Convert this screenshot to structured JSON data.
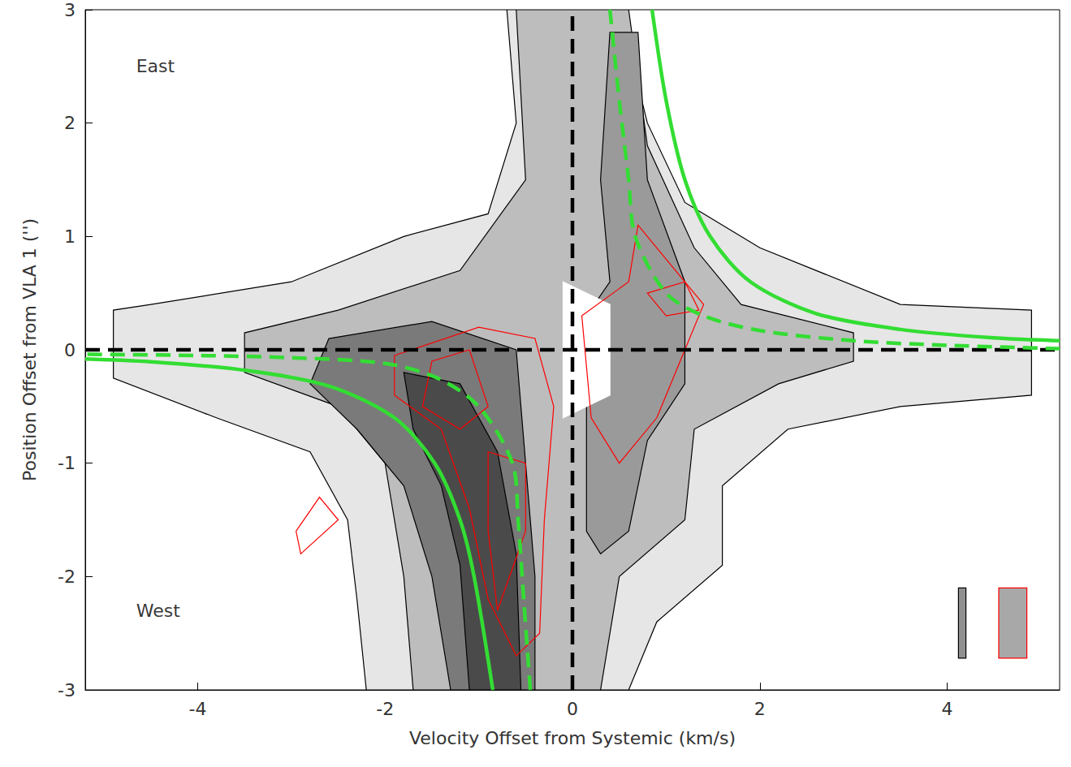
{
  "chart_data": {
    "type": "contour",
    "x_label": "Velocity Offset from Systemic (km/s)",
    "y_label": "Position Offset from VLA 1 ('')",
    "xlim": [
      -5.2,
      5.2
    ],
    "xticks": [
      -4,
      -2,
      0,
      2,
      4
    ],
    "ylim": [
      -3,
      3
    ],
    "yticks": [
      -3,
      -2,
      -1,
      0,
      1,
      2,
      3
    ],
    "grid": false,
    "annotations": [
      {
        "text": "East",
        "x": -4.7,
        "y": 2.5
      },
      {
        "text": "West",
        "x": -4.7,
        "y": -2.3
      }
    ],
    "series": [
      {
        "type": "polygon",
        "color": "#000000",
        "fill": "#e6e6e6",
        "points": [
          [
            -0.7,
            3
          ],
          [
            -0.6,
            2.0
          ],
          [
            -0.9,
            1.2
          ],
          [
            -1.8,
            1.0
          ],
          [
            -3.0,
            0.6
          ],
          [
            -4.5,
            0.4
          ],
          [
            -4.9,
            0.35
          ],
          [
            -4.9,
            -0.25
          ],
          [
            -3.8,
            -0.6
          ],
          [
            -2.8,
            -0.9
          ],
          [
            -2.4,
            -1.5
          ],
          [
            -2.3,
            -2.2
          ],
          [
            -2.2,
            -3
          ],
          [
            0.6,
            -3
          ],
          [
            0.9,
            -2.4
          ],
          [
            1.6,
            -1.9
          ],
          [
            1.6,
            -1.2
          ],
          [
            2.3,
            -0.7
          ],
          [
            3.5,
            -0.5
          ],
          [
            4.9,
            -0.4
          ],
          [
            4.9,
            0.35
          ],
          [
            3.5,
            0.4
          ],
          [
            2.0,
            0.9
          ],
          [
            1.2,
            1.3
          ],
          [
            0.8,
            2.0
          ],
          [
            0.5,
            3
          ]
        ]
      },
      {
        "type": "polygon",
        "color": "#000000",
        "fill": "#bdbdbd",
        "points": [
          [
            -0.6,
            3
          ],
          [
            -0.5,
            1.5
          ],
          [
            -1.2,
            0.7
          ],
          [
            -2.5,
            0.35
          ],
          [
            -3.5,
            0.15
          ],
          [
            -3.5,
            -0.2
          ],
          [
            -2.5,
            -0.5
          ],
          [
            -2.0,
            -1.0
          ],
          [
            -1.8,
            -2
          ],
          [
            -1.7,
            -3
          ],
          [
            0.3,
            -3
          ],
          [
            0.5,
            -2
          ],
          [
            1.2,
            -1.5
          ],
          [
            1.3,
            -0.7
          ],
          [
            2.2,
            -0.3
          ],
          [
            3,
            -0.1
          ],
          [
            3,
            0.15
          ],
          [
            1.8,
            0.4
          ],
          [
            1.3,
            0.9
          ],
          [
            0.8,
            1.8
          ],
          [
            0.6,
            3
          ]
        ]
      },
      {
        "type": "polygon",
        "color": "#000000",
        "fill": "#9a9a9a",
        "points": [
          [
            0.15,
            -1.6
          ],
          [
            0.15,
            0.3
          ],
          [
            0.4,
            0.6
          ],
          [
            0.3,
            1.5
          ],
          [
            0.4,
            2.8
          ],
          [
            0.7,
            2.8
          ],
          [
            0.8,
            1.5
          ],
          [
            1.2,
            0.6
          ],
          [
            1.2,
            -0.3
          ],
          [
            0.8,
            -0.8
          ],
          [
            0.6,
            -1.6
          ],
          [
            0.3,
            -1.8
          ]
        ]
      },
      {
        "type": "polygon",
        "color": "#000000",
        "fill": "#7a7a7a",
        "points": [
          [
            -2.6,
            0.1
          ],
          [
            -1.5,
            0.25
          ],
          [
            -0.6,
            0
          ],
          [
            -0.5,
            -1.0
          ],
          [
            -0.4,
            -2
          ],
          [
            -0.4,
            -3
          ],
          [
            -1.3,
            -3
          ],
          [
            -1.5,
            -2.0
          ],
          [
            -1.8,
            -1.2
          ],
          [
            -2.3,
            -0.7
          ],
          [
            -2.8,
            -0.3
          ]
        ]
      },
      {
        "type": "polygon",
        "color": "#000000",
        "fill": "#4a4a4a",
        "points": [
          [
            -1.8,
            -0.2
          ],
          [
            -1.2,
            -0.3
          ],
          [
            -0.8,
            -0.9
          ],
          [
            -0.6,
            -1.8
          ],
          [
            -0.55,
            -3
          ],
          [
            -1.1,
            -3
          ],
          [
            -1.2,
            -1.9
          ],
          [
            -1.4,
            -1.2
          ],
          [
            -1.7,
            -0.7
          ]
        ]
      },
      {
        "type": "polygon",
        "color": "#ffffff",
        "fill": "#ffffff",
        "points": [
          [
            -0.1,
            0.6
          ],
          [
            0.4,
            0.4
          ],
          [
            0.4,
            -0.4
          ],
          [
            -0.1,
            -0.6
          ]
        ]
      },
      {
        "type": "polygon",
        "color": "#ff0000",
        "fill": "none",
        "points": [
          [
            -1.9,
            -0.05
          ],
          [
            -1.0,
            0.2
          ],
          [
            -0.4,
            0.1
          ],
          [
            -0.2,
            -0.5
          ],
          [
            -0.3,
            -1.5
          ],
          [
            -0.35,
            -2.5
          ],
          [
            -0.6,
            -2.7
          ],
          [
            -0.9,
            -2.2
          ],
          [
            -1.1,
            -1.4
          ],
          [
            -1.4,
            -0.7
          ],
          [
            -1.9,
            -0.4
          ]
        ]
      },
      {
        "type": "polygon",
        "color": "#ff0000",
        "fill": "none",
        "points": [
          [
            -1.5,
            -0.1
          ],
          [
            -1.1,
            0.0
          ],
          [
            -0.9,
            -0.5
          ],
          [
            -1.2,
            -0.7
          ],
          [
            -1.6,
            -0.5
          ]
        ]
      },
      {
        "type": "polygon",
        "color": "#ff0000",
        "fill": "none",
        "points": [
          [
            -0.9,
            -0.9
          ],
          [
            -0.5,
            -1.0
          ],
          [
            -0.5,
            -1.6
          ],
          [
            -0.8,
            -2.3
          ],
          [
            -0.9,
            -1.6
          ]
        ]
      },
      {
        "type": "polygon",
        "color": "#ff0000",
        "fill": "none",
        "points": [
          [
            0.1,
            0.3
          ],
          [
            0.6,
            0.6
          ],
          [
            0.7,
            1.1
          ],
          [
            1.0,
            0.8
          ],
          [
            1.4,
            0.4
          ],
          [
            1.2,
            0.0
          ],
          [
            0.9,
            -0.6
          ],
          [
            0.5,
            -1.0
          ],
          [
            0.2,
            -0.6
          ]
        ]
      },
      {
        "type": "polygon",
        "color": "#ff0000",
        "fill": "none",
        "points": [
          [
            0.8,
            0.5
          ],
          [
            1.2,
            0.6
          ],
          [
            1.35,
            0.35
          ],
          [
            1.0,
            0.3
          ]
        ]
      },
      {
        "type": "polygon",
        "color": "#ff0000",
        "fill": "none",
        "points": [
          [
            -2.9,
            -1.8
          ],
          [
            -2.5,
            -1.5
          ],
          [
            -2.7,
            -1.3
          ],
          [
            -2.95,
            -1.6
          ]
        ]
      },
      {
        "type": "polygon",
        "color": "#000000",
        "fill": "#909090",
        "points": [
          [
            4.12,
            -2.1
          ],
          [
            4.2,
            -2.1
          ],
          [
            4.2,
            -2.72
          ],
          [
            4.12,
            -2.72
          ]
        ]
      },
      {
        "type": "polygon",
        "color": "#ff0000",
        "fill": "#a8a8a8",
        "points": [
          [
            4.55,
            -2.1
          ],
          [
            4.85,
            -2.1
          ],
          [
            4.85,
            -2.72
          ],
          [
            4.55,
            -2.72
          ]
        ]
      },
      {
        "type": "line",
        "color": "#000000",
        "line_style": "dashed",
        "points": [
          [
            0,
            -3
          ],
          [
            0,
            3
          ]
        ]
      },
      {
        "type": "line",
        "color": "#000000",
        "line_style": "dashed",
        "points": [
          [
            -5.2,
            0
          ],
          [
            5.2,
            0
          ]
        ]
      },
      {
        "type": "line",
        "color": "#33dd33",
        "line_style": "solid",
        "points": [
          [
            0.85,
            3
          ],
          [
            1.0,
            2.2
          ],
          [
            1.2,
            1.5
          ],
          [
            1.47,
            1.0
          ],
          [
            1.9,
            0.6
          ],
          [
            2.6,
            0.32
          ],
          [
            3.5,
            0.18
          ],
          [
            4.5,
            0.105
          ],
          [
            5.2,
            0.08
          ]
        ]
      },
      {
        "type": "line",
        "color": "#33dd33",
        "line_style": "solid",
        "points": [
          [
            -0.85,
            -3
          ],
          [
            -1.05,
            -2
          ],
          [
            -1.2,
            -1.5
          ],
          [
            -1.47,
            -1
          ],
          [
            -1.9,
            -0.6
          ],
          [
            -2.6,
            -0.32
          ],
          [
            -3.5,
            -0.18
          ],
          [
            -4.5,
            -0.105
          ],
          [
            -5.2,
            -0.08
          ]
        ]
      },
      {
        "type": "line",
        "color": "#33dd33",
        "line_style": "dashed",
        "points": [
          [
            0.4,
            3
          ],
          [
            0.5,
            2.2
          ],
          [
            0.6,
            1.5
          ],
          [
            0.67,
            1.0
          ],
          [
            1.0,
            0.5
          ],
          [
            1.4,
            0.3
          ],
          [
            2.0,
            0.17
          ],
          [
            3.0,
            0.08
          ],
          [
            4.0,
            0.04
          ],
          [
            5.2,
            0.01
          ]
        ]
      },
      {
        "type": "line",
        "color": "#33dd33",
        "line_style": "dashed",
        "points": [
          [
            -0.45,
            -3
          ],
          [
            -0.52,
            -2.2
          ],
          [
            -0.58,
            -1.5
          ],
          [
            -0.64,
            -1.0
          ],
          [
            -1.0,
            -0.5
          ],
          [
            -1.44,
            -0.25
          ],
          [
            -2.0,
            -0.12
          ],
          [
            -3.0,
            -0.07
          ],
          [
            -4.0,
            -0.05
          ],
          [
            -5.2,
            -0.04
          ]
        ]
      }
    ]
  }
}
